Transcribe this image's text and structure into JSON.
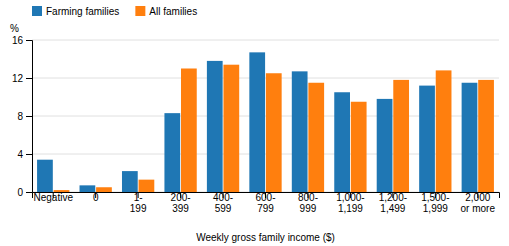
{
  "chart_data": {
    "type": "bar",
    "xlabel": "Weekly gross family income ($)",
    "ylabel": "%",
    "categories": [
      "Negative",
      "0",
      "1-\n199",
      "200-\n399",
      "400-\n599",
      "600-\n799",
      "800-\n999",
      "1,000-\n1,199",
      "1,200-\n1,499",
      "1,500-\n1,999",
      "2,000\nor more"
    ],
    "series": [
      {
        "name": "Farming families",
        "values": [
          3.4,
          0.7,
          2.2,
          8.3,
          13.8,
          14.7,
          12.7,
          10.5,
          9.8,
          11.2,
          11.5
        ]
      },
      {
        "name": "All families",
        "values": [
          0.2,
          0.5,
          1.3,
          13.0,
          13.4,
          12.5,
          11.5,
          9.5,
          11.8,
          12.8,
          11.8
        ]
      }
    ],
    "ylim": [
      0,
      16
    ],
    "yticks": [
      0,
      4,
      8,
      12,
      16
    ],
    "grid": true,
    "legend": "top-left"
  }
}
